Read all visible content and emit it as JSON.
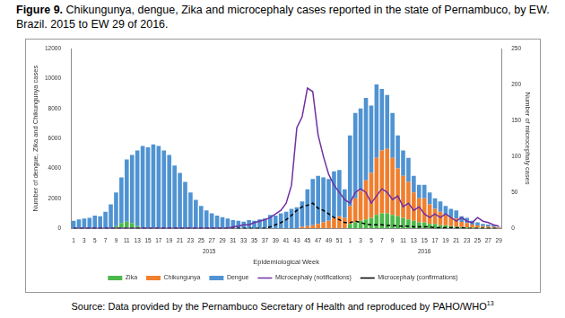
{
  "chart_data": {
    "type": "bar",
    "figure_label": "Figure 9.",
    "title": "Chikungunya, dengue, Zika and microcephaly cases reported in the state of Pernambuco, by EW. Brazil. 2015 to EW 29 of 2016.",
    "source": "Source: Data provided by the Pernambuco Secretary of Health and reproduced by PAHO/WHO",
    "source_note": "13",
    "x_label": "Epidemiological Week",
    "y_label": "Number of dengue, Zika and Chikungunya cases",
    "y2_label": "Number of microcephaly cases",
    "x_groups": [
      {
        "label": "2015",
        "size": 52
      },
      {
        "label": "2016",
        "size": 29
      }
    ],
    "categories": [
      "1",
      null,
      "3",
      null,
      "5",
      null,
      "7",
      null,
      "9",
      null,
      "11",
      null,
      "13",
      null,
      "15",
      null,
      "17",
      null,
      "19",
      null,
      "21",
      null,
      "23",
      null,
      "25",
      null,
      "27",
      null,
      "29",
      null,
      "31",
      null,
      "33",
      null,
      "35",
      null,
      "37",
      null,
      "39",
      null,
      "41",
      null,
      "43",
      null,
      "45",
      null,
      "47",
      null,
      "49",
      null,
      "51",
      null,
      "1",
      null,
      "3",
      null,
      "5",
      null,
      "7",
      null,
      "9",
      null,
      "11",
      null,
      "13",
      null,
      "15",
      null,
      "17",
      null,
      "19",
      null,
      "21",
      null,
      "23",
      null,
      "25",
      null,
      "27",
      null,
      "29"
    ],
    "series": [
      {
        "name": "Zika",
        "type": "bar",
        "color": "#4cb84a",
        "values": [
          0,
          0,
          0,
          0,
          0,
          0,
          0,
          0,
          150,
          350,
          450,
          350,
          150,
          0,
          0,
          0,
          0,
          0,
          0,
          0,
          0,
          0,
          0,
          0,
          0,
          0,
          0,
          0,
          0,
          0,
          0,
          0,
          0,
          0,
          0,
          0,
          0,
          0,
          0,
          0,
          0,
          0,
          0,
          0,
          0,
          0,
          0,
          0,
          0,
          0,
          0,
          0,
          300,
          400,
          500,
          600,
          700,
          900,
          1000,
          1000,
          900,
          800,
          700,
          600,
          500,
          400,
          400,
          300,
          300,
          200,
          200,
          150,
          100,
          80,
          60,
          50,
          40,
          30,
          20,
          20,
          10
        ]
      },
      {
        "name": "Chikungunya",
        "type": "bar",
        "color": "#f07f2e",
        "values": [
          0,
          0,
          0,
          0,
          0,
          0,
          0,
          0,
          0,
          0,
          0,
          0,
          0,
          0,
          0,
          0,
          0,
          0,
          0,
          0,
          0,
          0,
          0,
          0,
          0,
          0,
          0,
          0,
          0,
          0,
          0,
          0,
          0,
          0,
          0,
          0,
          0,
          0,
          0,
          0,
          0,
          0,
          0,
          100,
          150,
          200,
          300,
          400,
          500,
          700,
          800,
          700,
          1200,
          1600,
          2000,
          2600,
          3000,
          3800,
          4200,
          4300,
          3800,
          3200,
          2800,
          2500,
          1900,
          1600,
          1600,
          1300,
          1000,
          900,
          700,
          600,
          550,
          350,
          300,
          200,
          150,
          120,
          100,
          80,
          40
        ]
      },
      {
        "name": "Dengue",
        "type": "bar",
        "color": "#4f93d2",
        "values": [
          500,
          600,
          650,
          700,
          850,
          800,
          1100,
          1600,
          2250,
          3050,
          4150,
          4550,
          5050,
          5500,
          5400,
          5600,
          5500,
          5200,
          4900,
          4200,
          3700,
          3100,
          2400,
          1900,
          1500,
          1200,
          1000,
          850,
          750,
          650,
          550,
          500,
          450,
          550,
          500,
          600,
          650,
          900,
          850,
          1000,
          1100,
          1300,
          1400,
          1700,
          2450,
          3100,
          3200,
          3000,
          2800,
          3100,
          3100,
          1900,
          4700,
          5700,
          5500,
          5500,
          4500,
          4900,
          4100,
          3600,
          3000,
          2200,
          1700,
          1600,
          1100,
          900,
          900,
          800,
          700,
          700,
          600,
          550,
          550,
          370,
          340,
          250,
          210,
          150,
          130,
          100,
          50
        ]
      },
      {
        "name": "Microcephaly (notifications)",
        "type": "line",
        "axis": "y2",
        "color": "#7030a0",
        "line_style": "solid",
        "values": [
          0,
          0,
          0,
          0,
          0,
          0,
          0,
          0,
          0,
          0,
          0,
          0,
          0,
          0,
          0,
          0,
          0,
          0,
          0,
          0,
          0,
          0,
          0,
          0,
          0,
          0,
          0,
          0,
          0,
          0,
          2,
          3,
          5,
          5,
          8,
          10,
          12,
          15,
          20,
          25,
          35,
          60,
          140,
          155,
          195,
          190,
          130,
          100,
          75,
          60,
          50,
          40,
          35,
          50,
          55,
          50,
          35,
          45,
          55,
          50,
          40,
          45,
          30,
          35,
          25,
          30,
          20,
          15,
          20,
          15,
          20,
          15,
          10,
          15,
          10,
          8,
          15,
          10,
          8,
          5,
          3
        ]
      },
      {
        "name": "Microcephaly (confirmations)",
        "type": "line",
        "axis": "y2",
        "color": "#000000",
        "line_style": "dashed",
        "values": [
          0,
          0,
          0,
          0,
          0,
          0,
          0,
          0,
          0,
          0,
          0,
          0,
          0,
          0,
          0,
          0,
          0,
          0,
          0,
          0,
          0,
          0,
          0,
          0,
          0,
          0,
          0,
          0,
          0,
          0,
          0,
          0,
          0,
          0,
          0,
          0,
          0,
          2,
          5,
          8,
          12,
          18,
          25,
          30,
          32,
          35,
          28,
          25,
          20,
          15,
          12,
          8,
          8,
          10,
          8,
          6,
          5,
          5,
          5,
          4,
          4,
          3,
          3,
          3,
          2,
          2,
          2,
          2,
          1,
          1,
          1,
          1,
          1,
          1,
          0,
          0,
          0,
          0,
          0,
          0,
          0
        ]
      }
    ],
    "ylim": [
      0,
      12000
    ],
    "yticks": [
      0,
      2000,
      4000,
      6000,
      8000,
      10000,
      12000
    ],
    "y2lim": [
      0,
      250
    ],
    "y2ticks": [
      0,
      50,
      100,
      150,
      200,
      250
    ],
    "stacked": true,
    "grid": false,
    "legend": "bottom"
  }
}
